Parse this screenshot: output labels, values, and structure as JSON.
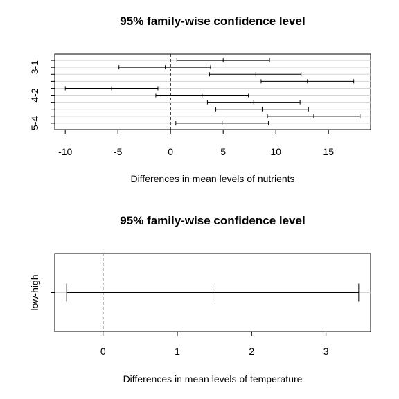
{
  "chart_data": [
    {
      "type": "errorbar",
      "title": "95% family-wise confidence level",
      "xlabel": "Differences in mean levels of nutrients",
      "ylabel": "",
      "xlim": [
        -11,
        19
      ],
      "x_ticks": [
        -10,
        -5,
        0,
        5,
        10,
        15
      ],
      "reference_line": 0,
      "grid": "horizontal",
      "y_tick_labels": [
        {
          "row": 2,
          "label": "3-1"
        },
        {
          "row": 6,
          "label": "4-2"
        },
        {
          "row": 10,
          "label": "5-4"
        }
      ],
      "intervals": [
        {
          "lwr": 0.6,
          "diff": 5.0,
          "upr": 9.4
        },
        {
          "lwr": -4.9,
          "diff": -0.5,
          "upr": 3.8
        },
        {
          "lwr": 3.7,
          "diff": 8.1,
          "upr": 12.4
        },
        {
          "lwr": 8.6,
          "diff": 13.0,
          "upr": 17.4
        },
        {
          "lwr": -10.0,
          "diff": -5.6,
          "upr": -1.2
        },
        {
          "lwr": -1.4,
          "diff": 3.0,
          "upr": 7.4
        },
        {
          "lwr": 3.5,
          "diff": 7.9,
          "upr": 12.3
        },
        {
          "lwr": 4.3,
          "diff": 8.7,
          "upr": 13.1
        },
        {
          "lwr": 9.2,
          "diff": 13.6,
          "upr": 18.0
        },
        {
          "lwr": 0.5,
          "diff": 4.9,
          "upr": 9.3
        }
      ]
    },
    {
      "type": "errorbar",
      "title": "95% family-wise confidence level",
      "xlabel": "Differences in mean levels of temperature",
      "ylabel": "",
      "xlim": [
        -0.65,
        3.6
      ],
      "x_ticks": [
        0,
        1,
        2,
        3
      ],
      "reference_line": 0,
      "grid": "horizontal",
      "y_tick_labels": [
        {
          "row": 1,
          "label": "low-high"
        }
      ],
      "intervals": [
        {
          "lwr": -0.49,
          "diff": 1.48,
          "upr": 3.44
        }
      ]
    }
  ]
}
